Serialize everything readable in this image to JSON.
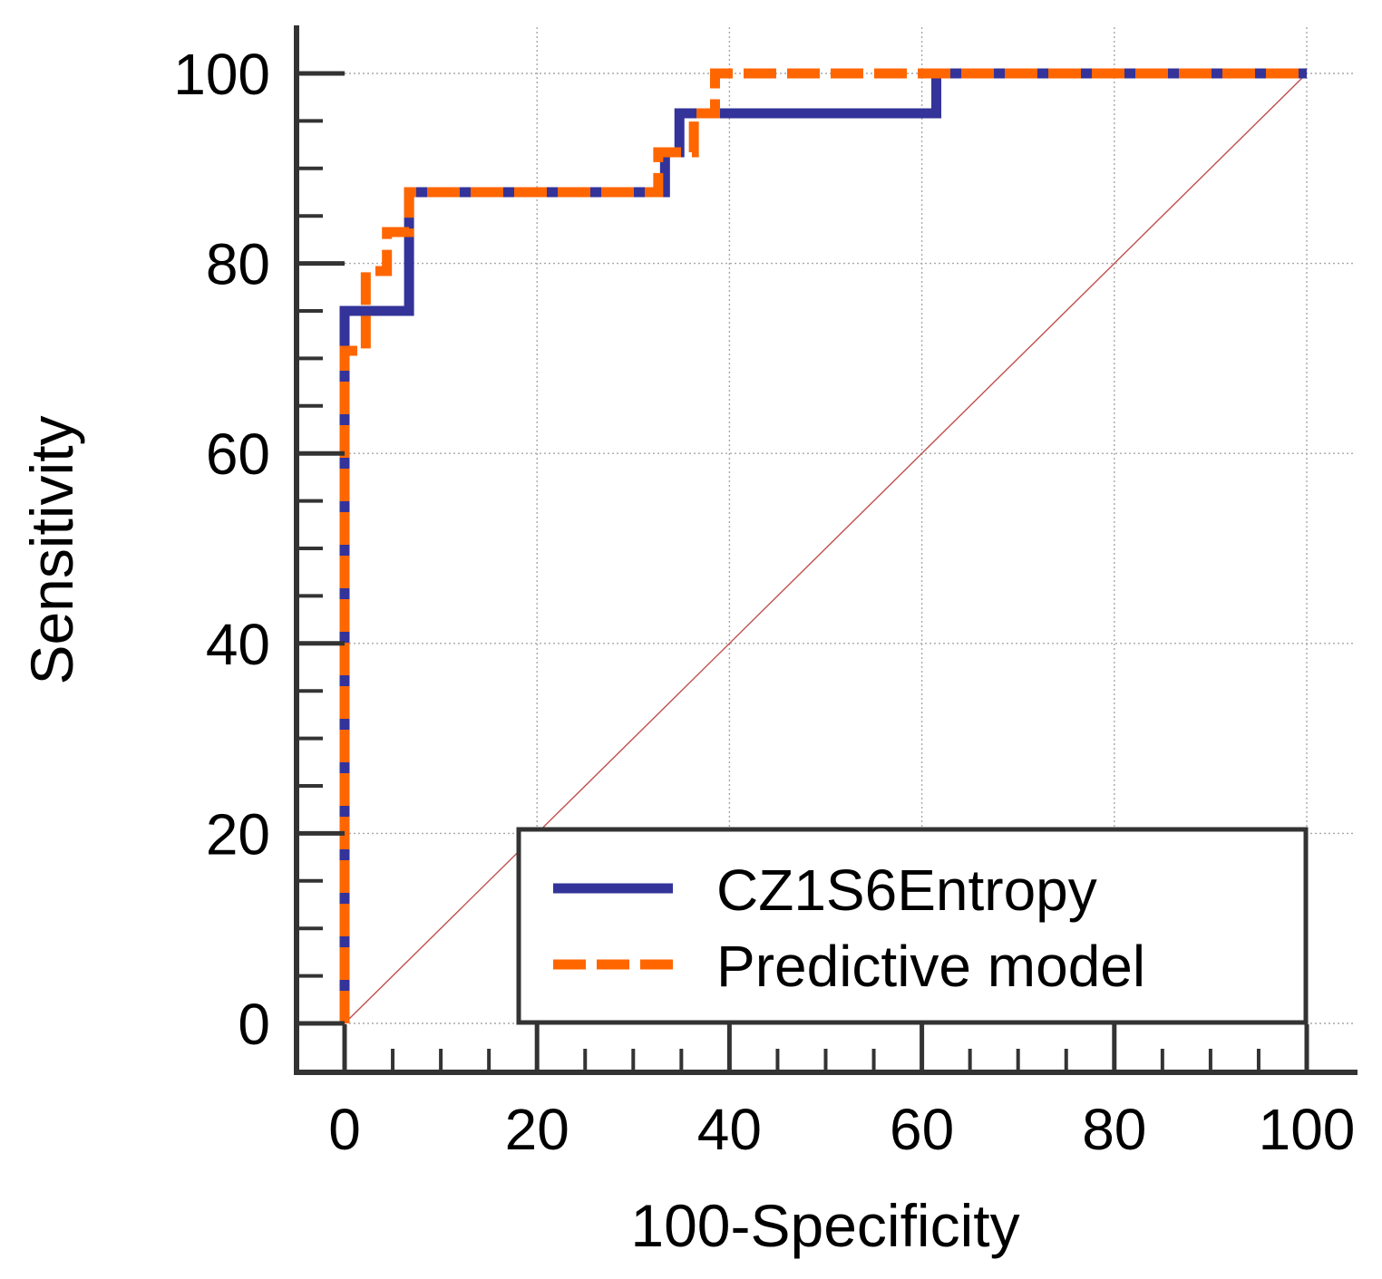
{
  "chart_data": {
    "type": "line",
    "title": "",
    "xlabel": "100-Specificity",
    "ylabel": "Sensitivity",
    "xlim": [
      0,
      100
    ],
    "ylim": [
      0,
      100
    ],
    "xticks": [
      0,
      20,
      40,
      60,
      80,
      100
    ],
    "yticks": [
      0,
      20,
      40,
      60,
      80,
      100
    ],
    "grid": true,
    "legend_position": "bottom-right",
    "series": [
      {
        "name": "CZ1S6Entropy",
        "color": "#33339a",
        "style": "solid",
        "x": [
          0,
          0,
          6.7,
          6.7,
          33.3,
          33.3,
          34.8,
          34.8,
          61.5,
          61.5,
          100
        ],
        "y": [
          0,
          75,
          75,
          87.5,
          87.5,
          91.7,
          91.7,
          95.8,
          95.8,
          100,
          100
        ]
      },
      {
        "name": "Predictive model",
        "color": "#ff6600",
        "style": "dashed",
        "x": [
          0,
          0,
          2.2,
          2.2,
          4.4,
          4.4,
          6.7,
          6.7,
          32.6,
          32.6,
          36.3,
          36.3,
          38.5,
          38.5,
          100
        ],
        "y": [
          0,
          70.8,
          70.8,
          79.2,
          79.2,
          83.3,
          83.3,
          87.5,
          87.5,
          91.7,
          91.7,
          95.8,
          95.8,
          100,
          100
        ]
      },
      {
        "name": "Reference line",
        "color": "#c0504d",
        "style": "thin",
        "x": [
          0,
          100
        ],
        "y": [
          0,
          100
        ]
      }
    ]
  }
}
